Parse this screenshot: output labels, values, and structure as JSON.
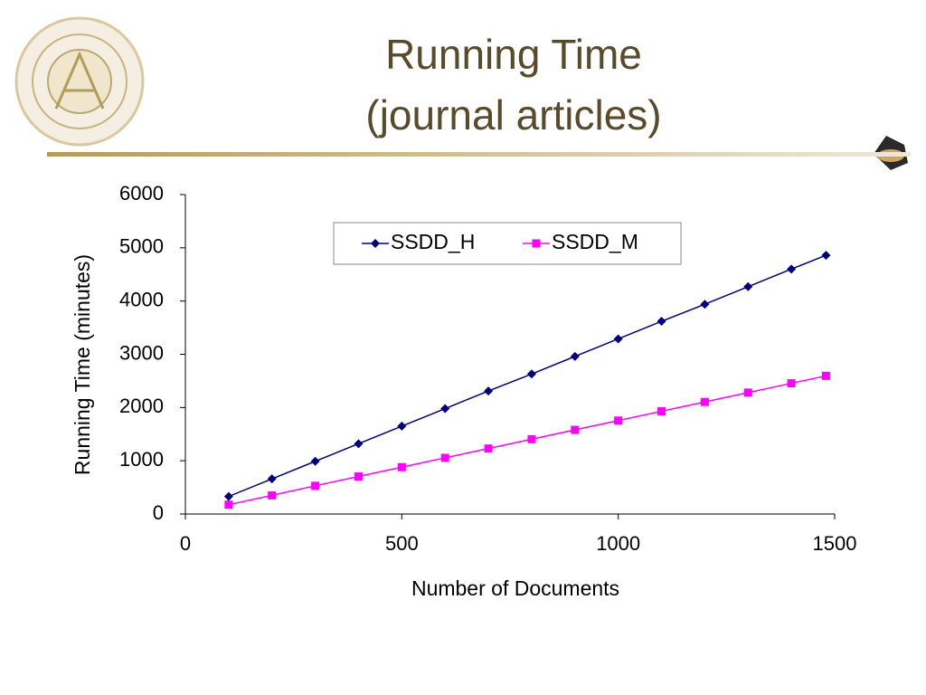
{
  "chart_data": {
    "type": "line",
    "title": "Running Time",
    "subtitle": "(journal articles)",
    "x_label": "Number of Documents",
    "y_label": "Running Time (minutes)",
    "x": [
      100,
      200,
      300,
      400,
      500,
      600,
      700,
      800,
      900,
      1000,
      1100,
      1200,
      1300,
      1400,
      1480
    ],
    "series": [
      {
        "name": "SSDD_H",
        "color": "#000080",
        "marker": "diamond",
        "values": [
          330,
          660,
          990,
          1320,
          1650,
          1980,
          2310,
          2630,
          2960,
          3290,
          3620,
          3940,
          4270,
          4600,
          4860
        ]
      },
      {
        "name": "SSDD_M",
        "color": "#ff00ff",
        "marker": "square",
        "values": [
          175,
          350,
          530,
          705,
          880,
          1055,
          1230,
          1405,
          1580,
          1755,
          1930,
          2105,
          2280,
          2455,
          2595
        ]
      }
    ],
    "xlim": [
      0,
      1500
    ],
    "xticks": [
      0,
      500,
      1000,
      1500
    ],
    "ylim": [
      0,
      6000
    ],
    "yticks": [
      0,
      1000,
      2000,
      3000,
      4000,
      5000,
      6000
    ],
    "grid": false,
    "legend": "top"
  }
}
